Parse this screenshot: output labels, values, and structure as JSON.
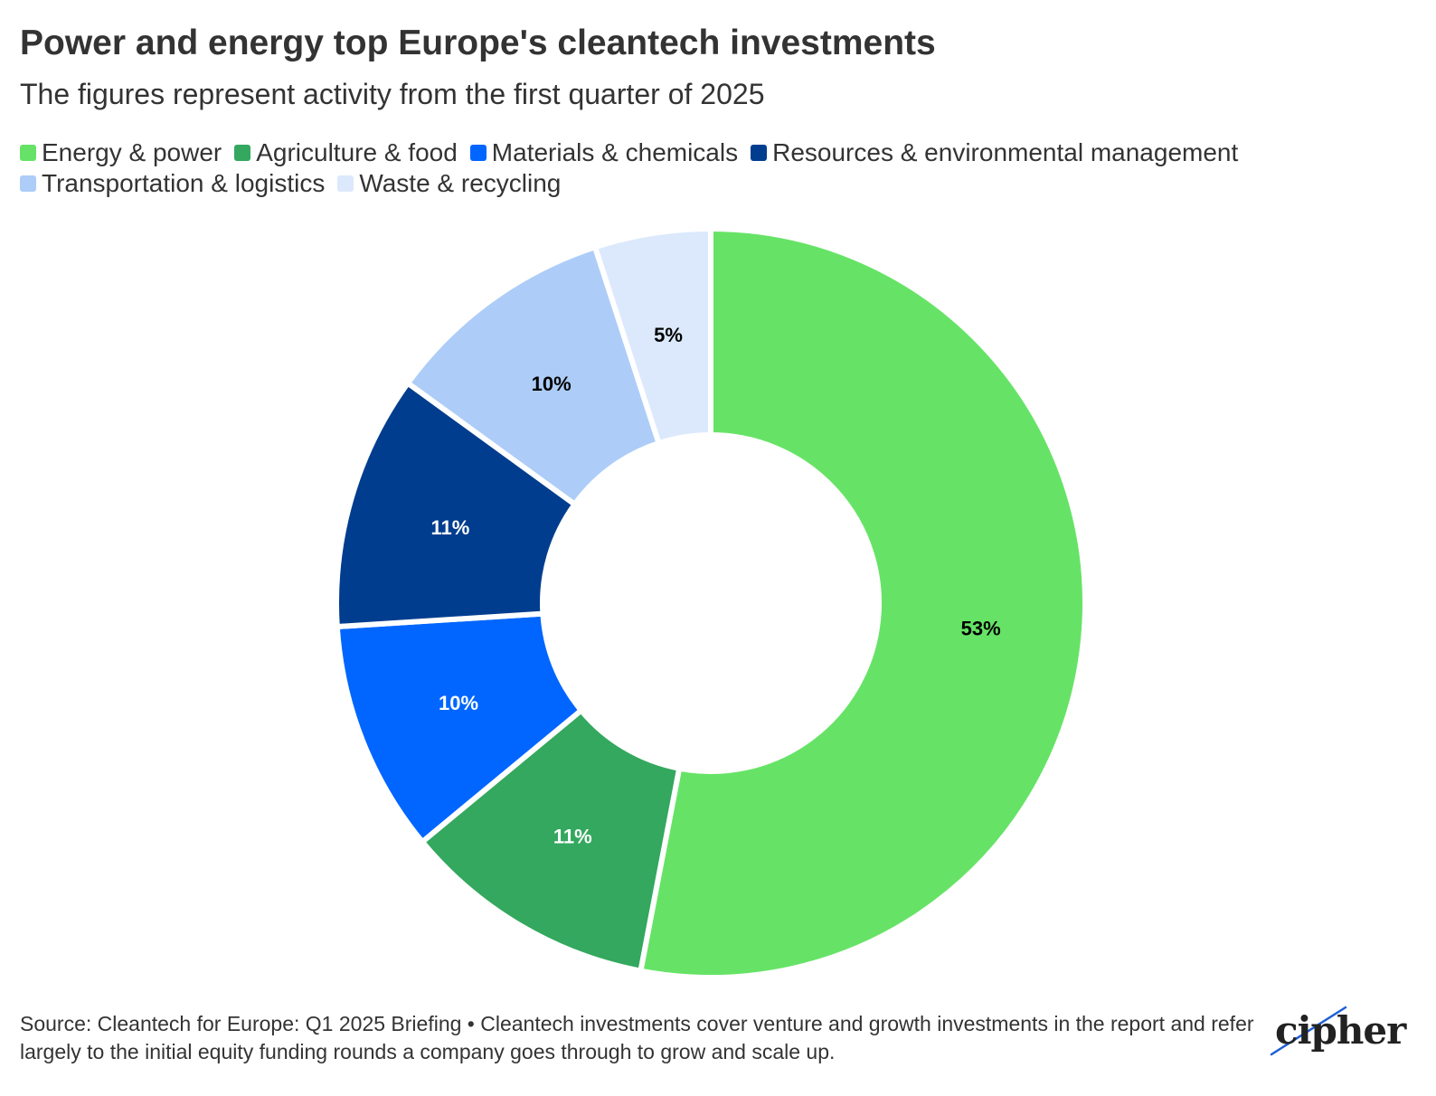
{
  "title": "Power and energy top Europe's cleantech investments",
  "subtitle": "The figures represent activity from the first quarter of 2025",
  "legend": [
    {
      "label": "Energy & power",
      "color": "#66e366"
    },
    {
      "label": "Agriculture & food",
      "color": "#33a85e"
    },
    {
      "label": "Materials & chemicals",
      "color": "#0066ff"
    },
    {
      "label": "Resources & environmental management",
      "color": "#003d8f"
    },
    {
      "label": "Transportation & logistics",
      "color": "#adcdf8"
    },
    {
      "label": "Waste & recycling",
      "color": "#dce9fc"
    }
  ],
  "chart_data": {
    "type": "pie",
    "donut": true,
    "categories": [
      "Energy & power",
      "Agriculture & food",
      "Materials & chemicals",
      "Resources & environmental management",
      "Transportation & logistics",
      "Waste & recycling"
    ],
    "values": [
      53,
      11,
      10,
      11,
      10,
      5
    ],
    "labels": [
      "53%",
      "11%",
      "10%",
      "11%",
      "10%",
      "5%"
    ],
    "colors": [
      "#66e366",
      "#33a85e",
      "#0066ff",
      "#003d8f",
      "#adcdf8",
      "#dce9fc"
    ],
    "label_colors": [
      "#000000",
      "#ffffff",
      "#ffffff",
      "#ffffff",
      "#000000",
      "#000000"
    ],
    "legend_position": "top"
  },
  "footer": {
    "source": "Source: Cleantech for Europe: Q1 2025 Briefing • Cleantech investments cover venture and growth investments in the report and refer largely to the initial equity funding rounds a company goes through to grow and scale up."
  },
  "logo": {
    "text": "cipher"
  }
}
